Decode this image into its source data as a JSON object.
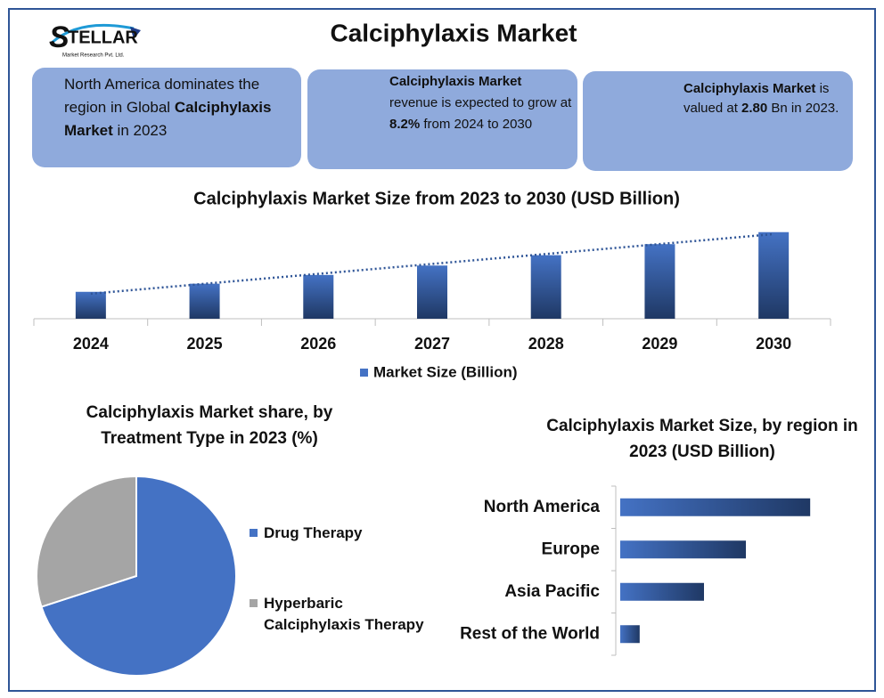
{
  "header": {
    "logo_mark": "S",
    "logo_text": "TELLAR",
    "logo_sub": "Market Research Pvt. Ltd.",
    "title": "Calciphylaxis Market"
  },
  "info_boxes": [
    {
      "parts": [
        {
          "text": "North America dominates the region in Global ",
          "bold": false
        },
        {
          "text": "Calciphylaxis Market",
          "bold": true
        },
        {
          "text": " in 2023",
          "bold": false
        }
      ]
    },
    {
      "parts": [
        {
          "text": "Calciphylaxis Market",
          "bold": true
        },
        {
          "text": " revenue is expected to grow at ",
          "bold": false
        },
        {
          "text": "8.2%",
          "bold": true
        },
        {
          "text": " from 2024 to 2030",
          "bold": false
        }
      ]
    },
    {
      "parts": [
        {
          "text": "Calciphylaxis   Market",
          "bold": true
        },
        {
          "text": " is valued at ",
          "bold": false
        },
        {
          "text": "2.80",
          "bold": true
        },
        {
          "text": " Bn in 2023.",
          "bold": false
        }
      ]
    }
  ],
  "chart_data": [
    {
      "type": "bar",
      "title": "Calciphylaxis Market Size from 2023 to 2030 (USD Billion)",
      "categories": [
        "2024",
        "2025",
        "2026",
        "2027",
        "2028",
        "2029",
        "2030"
      ],
      "series": [
        {
          "name": "Market Size (Billion)",
          "color": "#4472c4",
          "values": [
            3.03,
            3.28,
            3.55,
            3.84,
            4.16,
            4.5,
            4.87
          ]
        }
      ],
      "ylim": [
        2.2,
        5.0
      ],
      "trendline": true,
      "legend": "bottom"
    },
    {
      "type": "pie",
      "title": [
        "Calciphylaxis Market share, by",
        "Treatment Type in 2023 (%)"
      ],
      "categories": [
        "Drug Therapy",
        "Hyperbaric Calciphylaxis Therapy"
      ],
      "values": [
        70,
        30
      ],
      "colors": [
        "#4472c4",
        "#a5a5a5"
      ],
      "legend": "right"
    },
    {
      "type": "hbar",
      "title": [
        "Calciphylaxis Market Size, by region in",
        "2023 (USD Billion)"
      ],
      "categories": [
        "North America",
        "Europe",
        "Asia Pacific",
        "Rest of the World"
      ],
      "values": [
        1.27,
        0.84,
        0.56,
        0.13
      ],
      "color": "#4472c4",
      "xlim": [
        0,
        1.4
      ]
    }
  ]
}
